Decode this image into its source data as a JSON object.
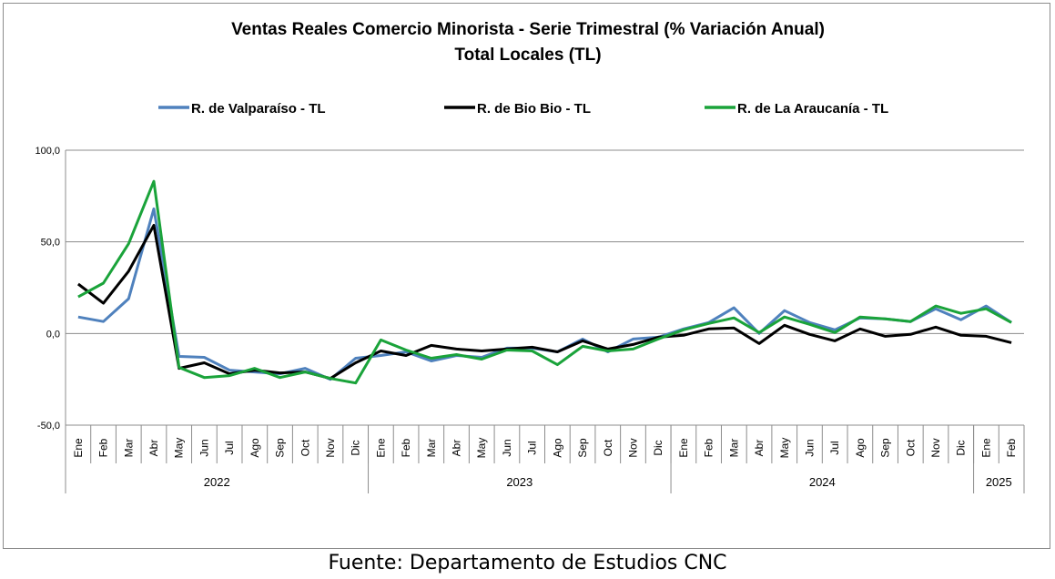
{
  "chart_data": {
    "type": "line",
    "title": "Ventas Reales Comercio Minorista - Serie Trimestral (% Variación Anual)",
    "subtitle": "Total Locales (TL)",
    "yticks": [
      "100,0",
      "50,0",
      "0,0",
      "-50,0"
    ],
    "ylim": [
      -50,
      100
    ],
    "grid": true,
    "legend_position": "top",
    "months": [
      "Ene",
      "Feb",
      "Mar",
      "Abr",
      "May",
      "Jun",
      "Jul",
      "Ago",
      "Sep",
      "Oct",
      "Nov",
      "Dic",
      "Ene",
      "Feb",
      "Mar",
      "Abr",
      "May",
      "Jun",
      "Jul",
      "Ago",
      "Sep",
      "Oct",
      "Nov",
      "Dic",
      "Ene",
      "Feb",
      "Mar",
      "Abr",
      "May",
      "Jun",
      "Jul",
      "Ago",
      "Sep",
      "Oct",
      "Nov",
      "Dic",
      "Ene",
      "Feb"
    ],
    "years": [
      {
        "label": "2022",
        "start": 0,
        "count": 12
      },
      {
        "label": "2023",
        "start": 12,
        "count": 12
      },
      {
        "label": "2024",
        "start": 24,
        "count": 12
      },
      {
        "label": "2025",
        "start": 36,
        "count": 2
      }
    ],
    "series": [
      {
        "name": "R. de Valparaíso - TL",
        "color": "#4f81bd",
        "values": [
          9,
          6.5,
          19,
          68,
          -12.5,
          -13,
          -20,
          -21,
          -22,
          -19,
          -25,
          -13.5,
          -12,
          -10,
          -15,
          -12,
          -13,
          -8,
          -8,
          -10,
          -3,
          -10,
          -3,
          -2,
          2.5,
          6,
          14,
          0,
          12.5,
          6,
          2,
          8.5,
          8,
          6.5,
          13.5,
          7.5,
          15,
          6
        ]
      },
      {
        "name": "R. de Bio Bio - TL",
        "color": "#000000",
        "values": [
          27,
          16.5,
          34,
          59,
          -19,
          -16,
          -22,
          -20,
          -21.5,
          -21,
          -24.5,
          -16,
          -9.5,
          -12,
          -6.5,
          -8.5,
          -9.5,
          -8.5,
          -7.5,
          -10,
          -4,
          -8.5,
          -6,
          -2,
          -1,
          2.5,
          3,
          -5.5,
          4.5,
          -0.5,
          -4,
          2.5,
          -1.5,
          -0.5,
          3.5,
          -1,
          -1.5,
          -5
        ]
      },
      {
        "name": "R. de La Araucanía - TL",
        "color": "#1aa33a",
        "values": [
          20,
          27.5,
          49,
          83,
          -18.5,
          -24,
          -23,
          -19,
          -24,
          -21,
          -24.5,
          -27,
          -3.5,
          -9,
          -13.5,
          -11.5,
          -14,
          -9,
          -9.5,
          -17,
          -7,
          -9.5,
          -8.5,
          -3,
          2,
          5.5,
          8.5,
          0.5,
          9,
          5,
          0.5,
          9,
          8,
          6.5,
          15,
          11,
          13.5,
          6
        ]
      }
    ]
  },
  "source_text": "Fuente: Departamento de Estudios CNC"
}
